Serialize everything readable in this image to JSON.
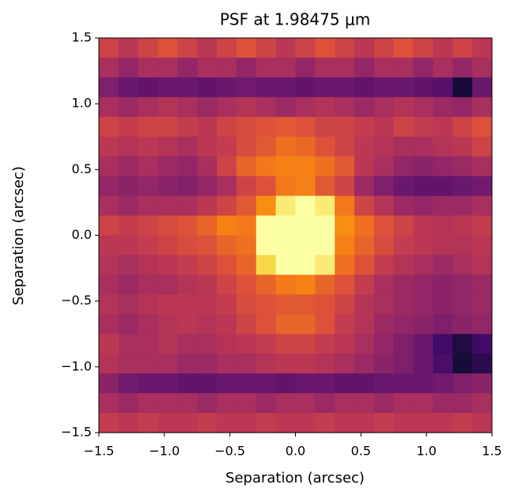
{
  "chart_data": {
    "type": "heatmap",
    "title": "PSF at 1.98475 μm",
    "x_label": "Separation (arcsec)",
    "y_label": "Separation (arcsec)",
    "colormap": "inferno",
    "xlim": [
      -1.5,
      1.5
    ],
    "ylim": [
      -1.5,
      1.5
    ],
    "xticks": [
      {
        "value": -1.5,
        "label": "−1.5"
      },
      {
        "value": -1.0,
        "label": "−1.0"
      },
      {
        "value": -0.5,
        "label": "−0.5"
      },
      {
        "value": 0,
        "label": "0.0"
      },
      0.5,
      {
        "value": 1,
        "label": "1.0"
      },
      1.5
    ],
    "yticks": [
      {
        "value": -1.5,
        "label": "−1.5"
      },
      {
        "value": -1.0,
        "label": "−1.0"
      },
      {
        "value": -0.5,
        "label": "−0.5"
      },
      {
        "value": 0,
        "label": "0.0"
      },
      0.5,
      {
        "value": 1,
        "label": "1.0"
      },
      1.5
    ],
    "z": [
      [
        0.55,
        0.5,
        0.55,
        0.6,
        0.55,
        0.5,
        0.55,
        0.6,
        0.55,
        0.5,
        0.55,
        0.6,
        0.55,
        0.5,
        0.55,
        0.6,
        0.55,
        0.5,
        0.55,
        0.5
      ],
      [
        0.45,
        0.4,
        0.45,
        0.45,
        0.4,
        0.45,
        0.45,
        0.4,
        0.45,
        0.45,
        0.4,
        0.45,
        0.45,
        0.4,
        0.45,
        0.45,
        0.4,
        0.45,
        0.4,
        0.45
      ],
      [
        0.35,
        0.3,
        0.28,
        0.3,
        0.3,
        0.28,
        0.3,
        0.32,
        0.3,
        0.3,
        0.28,
        0.3,
        0.3,
        0.28,
        0.3,
        0.3,
        0.28,
        0.25,
        0.1,
        0.3
      ],
      [
        0.45,
        0.42,
        0.45,
        0.48,
        0.45,
        0.42,
        0.45,
        0.48,
        0.45,
        0.42,
        0.45,
        0.48,
        0.45,
        0.42,
        0.45,
        0.48,
        0.45,
        0.42,
        0.4,
        0.45
      ],
      [
        0.55,
        0.52,
        0.55,
        0.55,
        0.52,
        0.5,
        0.55,
        0.58,
        0.6,
        0.62,
        0.6,
        0.55,
        0.55,
        0.52,
        0.5,
        0.55,
        0.52,
        0.5,
        0.55,
        0.6
      ],
      [
        0.5,
        0.48,
        0.5,
        0.48,
        0.45,
        0.5,
        0.52,
        0.58,
        0.62,
        0.68,
        0.66,
        0.6,
        0.55,
        0.5,
        0.48,
        0.45,
        0.45,
        0.48,
        0.5,
        0.55
      ],
      [
        0.45,
        0.42,
        0.45,
        0.42,
        0.4,
        0.45,
        0.55,
        0.65,
        0.7,
        0.72,
        0.72,
        0.68,
        0.62,
        0.5,
        0.45,
        0.4,
        0.38,
        0.4,
        0.42,
        0.45
      ],
      [
        0.4,
        0.38,
        0.4,
        0.38,
        0.36,
        0.4,
        0.45,
        0.55,
        0.6,
        0.7,
        0.72,
        0.62,
        0.55,
        0.42,
        0.35,
        0.3,
        0.28,
        0.28,
        0.3,
        0.32
      ],
      [
        0.45,
        0.42,
        0.45,
        0.45,
        0.45,
        0.5,
        0.55,
        0.62,
        0.75,
        0.95,
        1.0,
        0.95,
        0.7,
        0.55,
        0.48,
        0.42,
        0.4,
        0.42,
        0.42,
        0.45
      ],
      [
        0.55,
        0.52,
        0.55,
        0.58,
        0.6,
        0.65,
        0.72,
        0.7,
        1.0,
        1.0,
        1.0,
        1.0,
        0.75,
        0.68,
        0.6,
        0.55,
        0.5,
        0.48,
        0.5,
        0.52
      ],
      [
        0.5,
        0.5,
        0.52,
        0.55,
        0.58,
        0.6,
        0.65,
        0.68,
        1.0,
        1.0,
        1.0,
        1.0,
        0.72,
        0.65,
        0.58,
        0.52,
        0.5,
        0.48,
        0.48,
        0.5
      ],
      [
        0.48,
        0.45,
        0.48,
        0.5,
        0.52,
        0.55,
        0.6,
        0.65,
        0.9,
        1.0,
        1.0,
        0.95,
        0.68,
        0.6,
        0.52,
        0.48,
        0.45,
        0.42,
        0.45,
        0.48
      ],
      [
        0.45,
        0.42,
        0.45,
        0.45,
        0.48,
        0.5,
        0.55,
        0.6,
        0.65,
        0.7,
        0.72,
        0.65,
        0.6,
        0.52,
        0.45,
        0.42,
        0.4,
        0.38,
        0.4,
        0.42
      ],
      [
        0.48,
        0.45,
        0.48,
        0.5,
        0.5,
        0.5,
        0.52,
        0.58,
        0.6,
        0.62,
        0.62,
        0.6,
        0.55,
        0.48,
        0.45,
        0.42,
        0.4,
        0.38,
        0.4,
        0.42
      ],
      [
        0.45,
        0.42,
        0.45,
        0.48,
        0.5,
        0.48,
        0.5,
        0.55,
        0.6,
        0.65,
        0.65,
        0.6,
        0.52,
        0.48,
        0.42,
        0.4,
        0.38,
        0.35,
        0.38,
        0.4
      ],
      [
        0.5,
        0.45,
        0.45,
        0.48,
        0.45,
        0.45,
        0.48,
        0.5,
        0.52,
        0.55,
        0.55,
        0.52,
        0.5,
        0.45,
        0.4,
        0.35,
        0.3,
        0.2,
        0.12,
        0.2
      ],
      [
        0.48,
        0.45,
        0.45,
        0.45,
        0.42,
        0.42,
        0.45,
        0.45,
        0.48,
        0.5,
        0.5,
        0.48,
        0.45,
        0.42,
        0.38,
        0.35,
        0.3,
        0.22,
        0.1,
        0.15
      ],
      [
        0.38,
        0.32,
        0.3,
        0.3,
        0.28,
        0.28,
        0.3,
        0.3,
        0.3,
        0.28,
        0.3,
        0.3,
        0.28,
        0.28,
        0.3,
        0.3,
        0.3,
        0.32,
        0.35,
        0.38
      ],
      [
        0.45,
        0.42,
        0.45,
        0.45,
        0.45,
        0.42,
        0.45,
        0.45,
        0.42,
        0.45,
        0.45,
        0.42,
        0.45,
        0.45,
        0.42,
        0.45,
        0.45,
        0.42,
        0.42,
        0.45
      ],
      [
        0.52,
        0.5,
        0.52,
        0.5,
        0.5,
        0.52,
        0.5,
        0.5,
        0.52,
        0.5,
        0.5,
        0.52,
        0.5,
        0.5,
        0.52,
        0.5,
        0.5,
        0.5,
        0.52,
        0.5
      ]
    ]
  }
}
